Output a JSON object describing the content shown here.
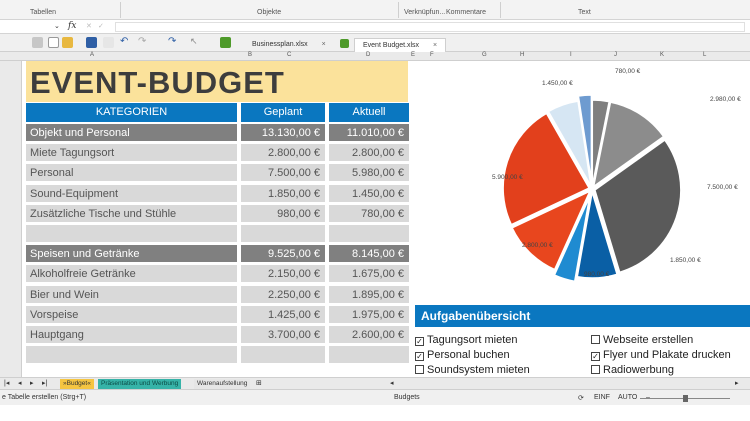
{
  "ribbon": {
    "groups": [
      "Tabellen",
      "Objekte",
      "Verknüpfun...",
      "Kommentare",
      "Text"
    ]
  },
  "formula_bar": {
    "fx": "fx"
  },
  "doc_tabs": [
    {
      "label": "Businessplan.xlsx",
      "close": "×"
    },
    {
      "label": "Event Budget.xlsx",
      "close": "×"
    }
  ],
  "columns": [
    "A",
    "B",
    "C",
    "D",
    "E",
    "F",
    "G",
    "H",
    "I",
    "J",
    "K",
    "L"
  ],
  "sheet": {
    "title": "EVENT-BUDGET",
    "headers": {
      "category": "KATEGORIEN",
      "planned": "Geplant",
      "actual": "Aktuell"
    },
    "rows": [
      {
        "kind": "cat",
        "label": "Objekt und Personal",
        "planned": "13.130,00 €",
        "actual": "11.010,00 €"
      },
      {
        "kind": "item",
        "label": "Miete Tagungsort",
        "planned": "2.800,00 €",
        "actual": "2.800,00 €"
      },
      {
        "kind": "item",
        "label": "Personal",
        "planned": "7.500,00 €",
        "actual": "5.980,00 €"
      },
      {
        "kind": "item",
        "label": "Sound-Equipment",
        "planned": "1.850,00 €",
        "actual": "1.450,00 €"
      },
      {
        "kind": "item",
        "label": "Zusätzliche Tische und Stühle",
        "planned": "980,00 €",
        "actual": "780,00 €"
      },
      {
        "kind": "blank",
        "label": "",
        "planned": "",
        "actual": ""
      },
      {
        "kind": "cat",
        "label": "Speisen und Getränke",
        "planned": "9.525,00 €",
        "actual": "8.145,00 €"
      },
      {
        "kind": "item",
        "label": "Alkoholfreie Getränke",
        "planned": "2.150,00 €",
        "actual": "1.675,00 €"
      },
      {
        "kind": "item",
        "label": "Bier und Wein",
        "planned": "2.250,00 €",
        "actual": "1.895,00 €"
      },
      {
        "kind": "item",
        "label": "Vorspeise",
        "planned": "1.425,00 €",
        "actual": "1.975,00 €"
      },
      {
        "kind": "item",
        "label": "Hauptgang",
        "planned": "3.700,00 €",
        "actual": "2.600,00 €"
      },
      {
        "kind": "blank",
        "label": "",
        "planned": "",
        "actual": ""
      }
    ]
  },
  "pie": {
    "slices": [
      {
        "label": "780,00 €",
        "value": 780,
        "color": "#7f7f7f"
      },
      {
        "label": "2.980,00 €",
        "value": 2980,
        "color": "#8c8c8c"
      },
      {
        "label": "7.500,00 €",
        "value": 7500,
        "color": "#5a5a5a"
      },
      {
        "label": "1.850,00 €",
        "value": 1850,
        "color": "#0a5fa5"
      },
      {
        "label": "980,00 €",
        "value": 980,
        "color": "#1f8bd1"
      },
      {
        "label": "2.800,00 €",
        "value": 2800,
        "color": "#e8461e"
      },
      {
        "label": "5.900,00 €",
        "value": 5900,
        "color": "#e2401c"
      },
      {
        "label": "1.450,00 €",
        "value": 1450,
        "color": "#d6e6f3"
      },
      {
        "label": "",
        "value": 600,
        "color": "#6e9bd0"
      }
    ]
  },
  "tasks": {
    "title": "Aufgabenübersicht",
    "items": [
      {
        "label": "Tagungsort mieten",
        "checked": true
      },
      {
        "label": "Webseite erstellen",
        "checked": false
      },
      {
        "label": "Personal buchen",
        "checked": true
      },
      {
        "label": "Flyer und Plakate drucken",
        "checked": true
      },
      {
        "label": "Soundsystem mieten",
        "checked": false
      },
      {
        "label": "Radiowerbung",
        "checked": false
      }
    ]
  },
  "sheet_tabs": [
    "»Budget«",
    "Präsentation und Werbung",
    "Warenaufstellung"
  ],
  "status": {
    "left": "e Tabelle erstellen (Strg+T)",
    "mid": "Budgets",
    "ins": "EINF",
    "auto": "AUTO"
  }
}
